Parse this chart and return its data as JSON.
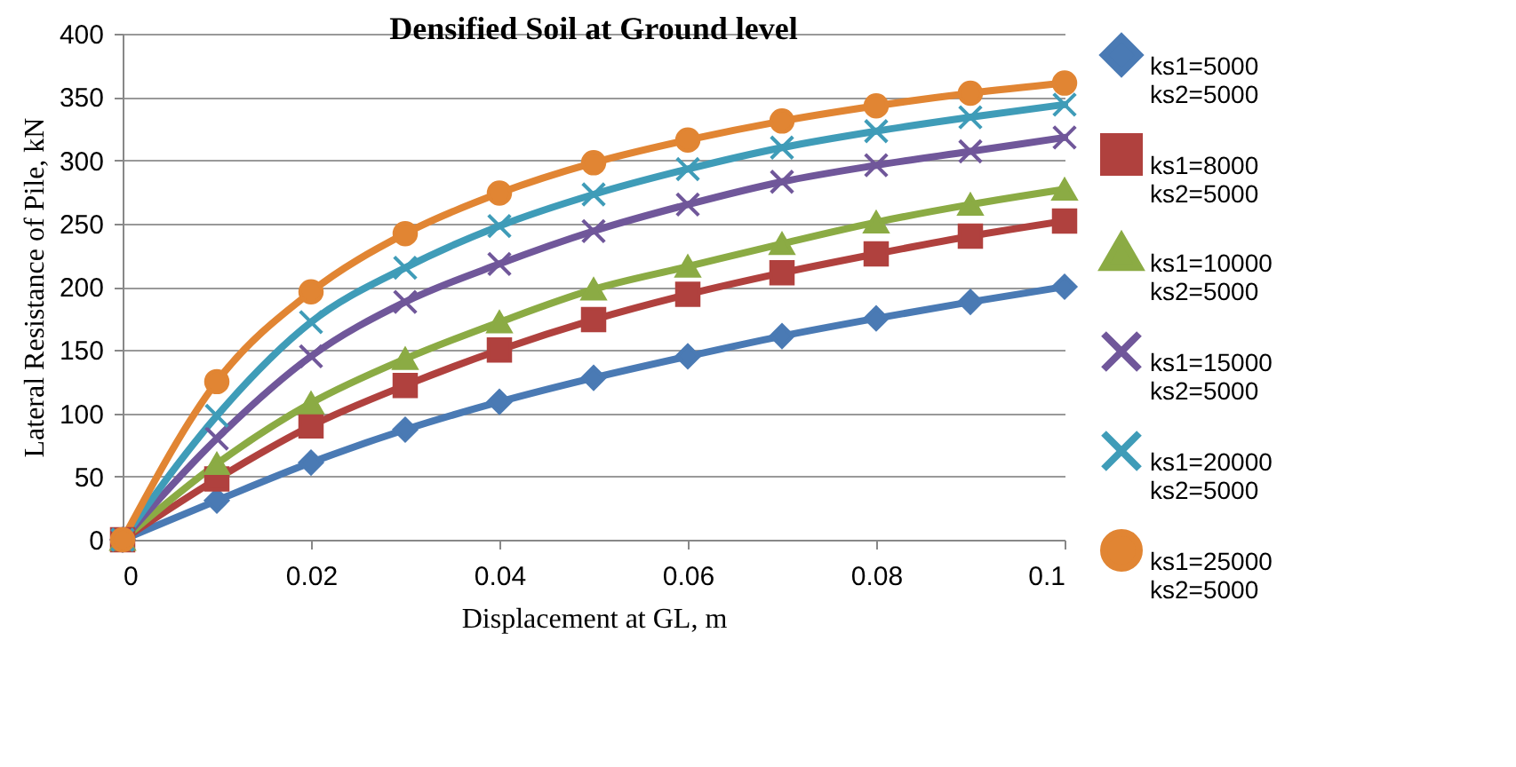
{
  "chart_data": {
    "type": "line",
    "title": "Densified Soil at Ground level",
    "xlabel": "Displacement at GL, m",
    "ylabel": "Lateral Resistance of Pile, kN",
    "x": [
      0,
      0.01,
      0.02,
      0.03,
      0.04,
      0.05,
      0.06,
      0.07,
      0.08,
      0.09,
      0.1
    ],
    "series": [
      {
        "name": "ks1=5000\nks2=5000",
        "color": "#4a7ab4",
        "marker": "diamond",
        "values": [
          0,
          31,
          61,
          87,
          109,
          128,
          145,
          161,
          175,
          188,
          200
        ]
      },
      {
        "name": "ks1=8000\nks2=5000",
        "color": "#b0413e",
        "marker": "square",
        "values": [
          0,
          48,
          90,
          122,
          150,
          174,
          194,
          211,
          226,
          240,
          252
        ]
      },
      {
        "name": "ks1=10000\nks2=5000",
        "color": "#8bab44",
        "marker": "triangle",
        "values": [
          0,
          60,
          108,
          143,
          172,
          198,
          216,
          234,
          251,
          265,
          277
        ]
      },
      {
        "name": "ks1=15000\nks2=5000",
        "color": "#70579a",
        "marker": "cross",
        "values": [
          0,
          80,
          145,
          188,
          218,
          244,
          265,
          283,
          296,
          307,
          318
        ]
      },
      {
        "name": "ks1=20000\nks2=5000",
        "color": "#3f9cb8",
        "marker": "cross",
        "values": [
          0,
          98,
          172,
          215,
          248,
          273,
          293,
          310,
          323,
          334,
          344
        ]
      },
      {
        "name": "ks1=25000\nks2=5000",
        "color": "#e18533",
        "marker": "circle",
        "values": [
          0,
          125,
          196,
          242,
          274,
          298,
          316,
          331,
          343,
          353,
          361
        ]
      }
    ],
    "xlim": [
      0,
      0.1
    ],
    "xticks": [
      0,
      0.02,
      0.04,
      0.06,
      0.08,
      0.1
    ],
    "ylim": [
      0,
      400
    ],
    "yticks": [
      0,
      50,
      100,
      150,
      200,
      250,
      300,
      350,
      400
    ],
    "grid": "y",
    "legend": "right",
    "line_style": "solid"
  }
}
